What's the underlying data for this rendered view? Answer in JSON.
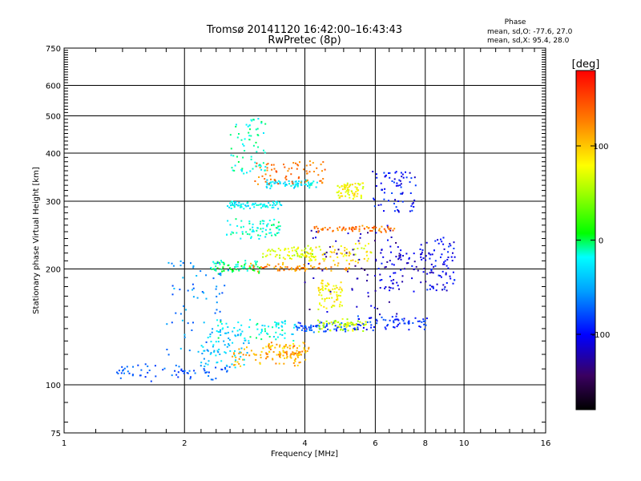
{
  "chart_data": {
    "type": "scatter",
    "title": "Tromsø 20141120 16:42:00–16:43:43",
    "subtitle": "RwPretec (8p)",
    "xlabel": "Frequency [MHz]",
    "ylabel": "Stationary phase Virtual Height [km]",
    "x_scale": "log",
    "y_scale": "log",
    "xlim": [
      1,
      16
    ],
    "ylim": [
      75,
      750
    ],
    "x_ticks": [
      1,
      2,
      4,
      6,
      8,
      10,
      16
    ],
    "y_ticks": [
      75,
      100,
      200,
      300,
      400,
      500,
      600,
      750
    ],
    "grid": true,
    "phase_info": {
      "heading": "Phase",
      "line_o": "mean, sd,O: -77.6, 27.0",
      "line_x": "mean, sd,X:  95.4, 28.0"
    },
    "colorbar": {
      "unit": "[deg]",
      "ticks": [
        100,
        0,
        -100
      ],
      "range": [
        -180,
        180
      ]
    },
    "clusters": [
      {
        "fs": [
          1.35,
          2.6
        ],
        "h0": [
          104,
          112
        ],
        "ph": [
          -90,
          -60
        ]
      },
      {
        "fs": [
          2.6,
          3.9
        ],
        "h0": [
          112,
          125
        ],
        "ph": [
          90,
          130
        ]
      },
      {
        "fs": [
          2.2,
          2.9
        ],
        "h0": [
          112,
          140
        ],
        "ph": [
          -60,
          -20
        ]
      },
      {
        "fs": [
          3.2,
          4.1
        ],
        "h0": [
          118,
          128
        ],
        "ph": [
          80,
          140
        ]
      },
      {
        "fs": [
          2.4,
          3.8
        ],
        "h0": [
          130,
          146
        ],
        "ph": [
          -40,
          0
        ]
      },
      {
        "fs": [
          3.8,
          5.4
        ],
        "h0": [
          138,
          144
        ],
        "ph": [
          -100,
          -60
        ]
      },
      {
        "fs": [
          4.3,
          5.7
        ],
        "h0": [
          139,
          147
        ],
        "ph": [
          40,
          80
        ]
      },
      {
        "fs": [
          5.4,
          8.1
        ],
        "h0": [
          140,
          150
        ],
        "ph": [
          -110,
          -70
        ]
      },
      {
        "fs": [
          2.3,
          3.1
        ],
        "h0": [
          195,
          210
        ],
        "ph": [
          -20,
          10
        ]
      },
      {
        "fs": [
          2.9,
          5.2
        ],
        "h0": [
          198,
          206
        ],
        "ph": [
          100,
          150
        ]
      },
      {
        "fs": [
          3.1,
          4.2
        ],
        "h0": [
          212,
          228
        ],
        "ph": [
          40,
          90
        ]
      },
      {
        "fs": [
          4.0,
          5.9
        ],
        "h0": [
          208,
          232
        ],
        "ph": [
          60,
          110
        ]
      },
      {
        "fs": [
          4.3,
          5.0
        ],
        "h0": [
          158,
          185
        ],
        "ph": [
          60,
          100
        ]
      },
      {
        "fs": [
          4.0,
          7.0
        ],
        "h0": [
          150,
          260
        ],
        "ph": [
          -140,
          -100
        ]
      },
      {
        "fs": [
          6.0,
          8.4
        ],
        "h0": [
          170,
          240
        ],
        "ph": [
          -130,
          -90
        ]
      },
      {
        "fs": [
          2.55,
          3.5
        ],
        "h0": [
          288,
          298
        ],
        "ph": [
          -40,
          -10
        ]
      },
      {
        "fs": [
          3.2,
          4.3
        ],
        "h0": [
          325,
          340
        ],
        "ph": [
          -40,
          -10
        ]
      },
      {
        "fs": [
          4.8,
          5.6
        ],
        "h0": [
          305,
          335
        ],
        "ph": [
          60,
          100
        ]
      },
      {
        "fs": [
          4.2,
          6.8
        ],
        "h0": [
          250,
          258
        ],
        "ph": [
          110,
          150
        ]
      },
      {
        "fs": [
          2.55,
          3.5
        ],
        "h0": [
          240,
          270
        ],
        "ph": [
          -30,
          0
        ]
      },
      {
        "fs": [
          3.0,
          4.5
        ],
        "h0": [
          330,
          380
        ],
        "ph": [
          110,
          150
        ]
      },
      {
        "fs": [
          2.6,
          3.2
        ],
        "h0": [
          350,
          490
        ],
        "ph": [
          -30,
          0
        ]
      },
      {
        "fs": [
          5.9,
          7.6
        ],
        "h0": [
          280,
          360
        ],
        "ph": [
          -120,
          -80
        ]
      },
      {
        "fs": [
          8.0,
          9.5
        ],
        "h0": [
          175,
          240
        ],
        "ph": [
          -120,
          -80
        ]
      },
      {
        "fs": [
          1.8,
          2.6
        ],
        "h0": [
          120,
          210
        ],
        "ph": [
          -80,
          -40
        ]
      }
    ]
  }
}
